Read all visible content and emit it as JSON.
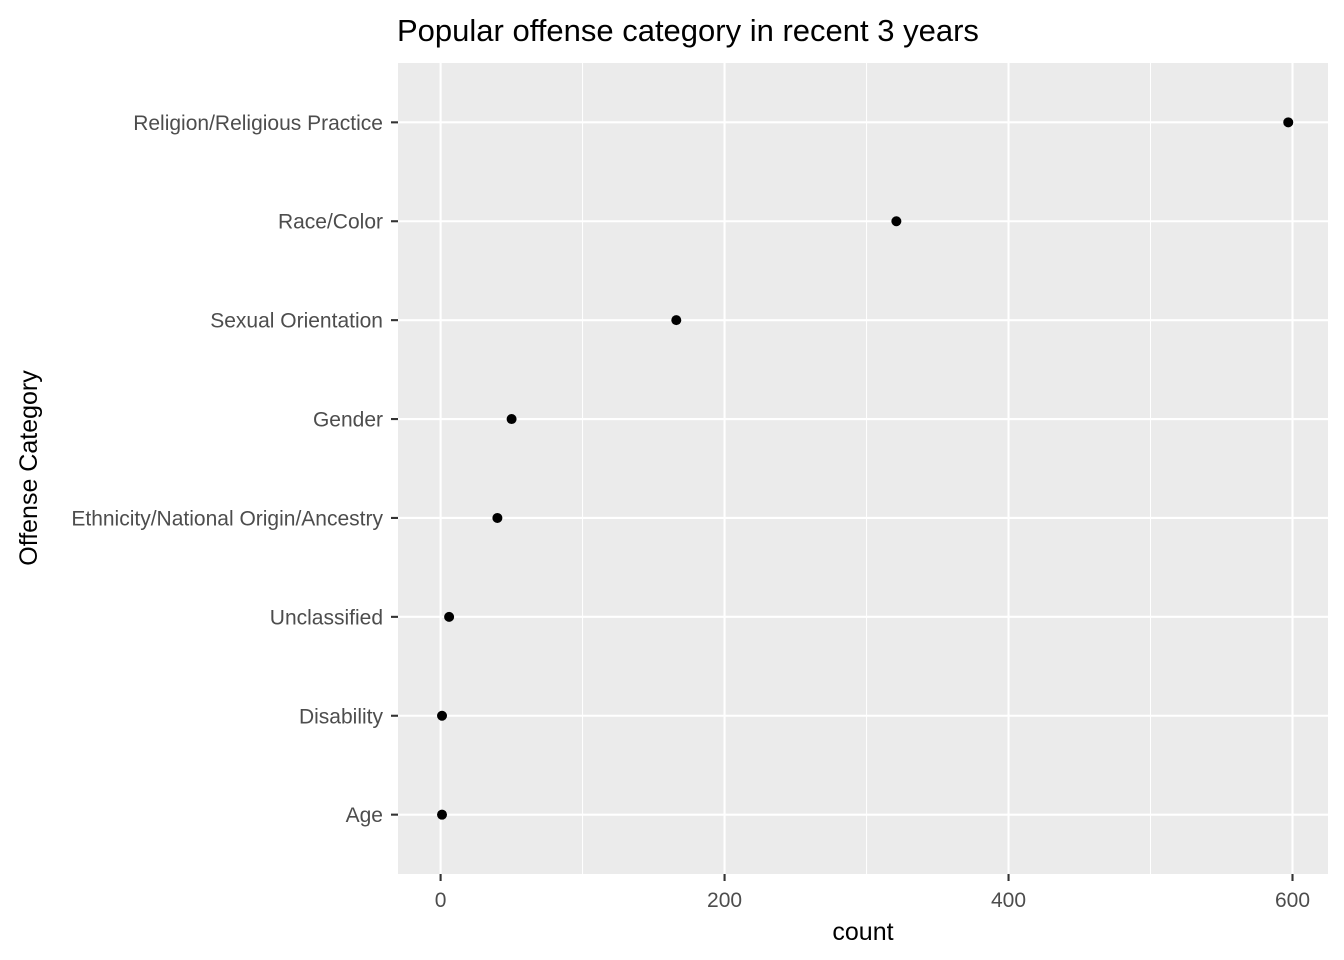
{
  "chart_data": {
    "type": "scatter",
    "title": "Popular offense category in recent 3 years",
    "xlabel": "count",
    "ylabel": "Offense Category",
    "xlim": [
      -30,
      625
    ],
    "x_ticks": [
      0,
      200,
      400,
      600
    ],
    "x_tick_labels": [
      "0",
      "200",
      "400",
      "600"
    ],
    "categories": [
      "Religion/Religious Practice",
      "Race/Color",
      "Sexual Orientation",
      "Gender",
      "Ethnicity/National Origin/Ancestry",
      "Unclassified",
      "Disability",
      "Age"
    ],
    "values": [
      597,
      321,
      166,
      50,
      40,
      6,
      1,
      1
    ],
    "grid": true,
    "legend": "none",
    "colors": {
      "panel": "#ebebeb",
      "grid": "#ffffff",
      "point": "#000000",
      "tick_text": "#4d4d4d"
    }
  }
}
